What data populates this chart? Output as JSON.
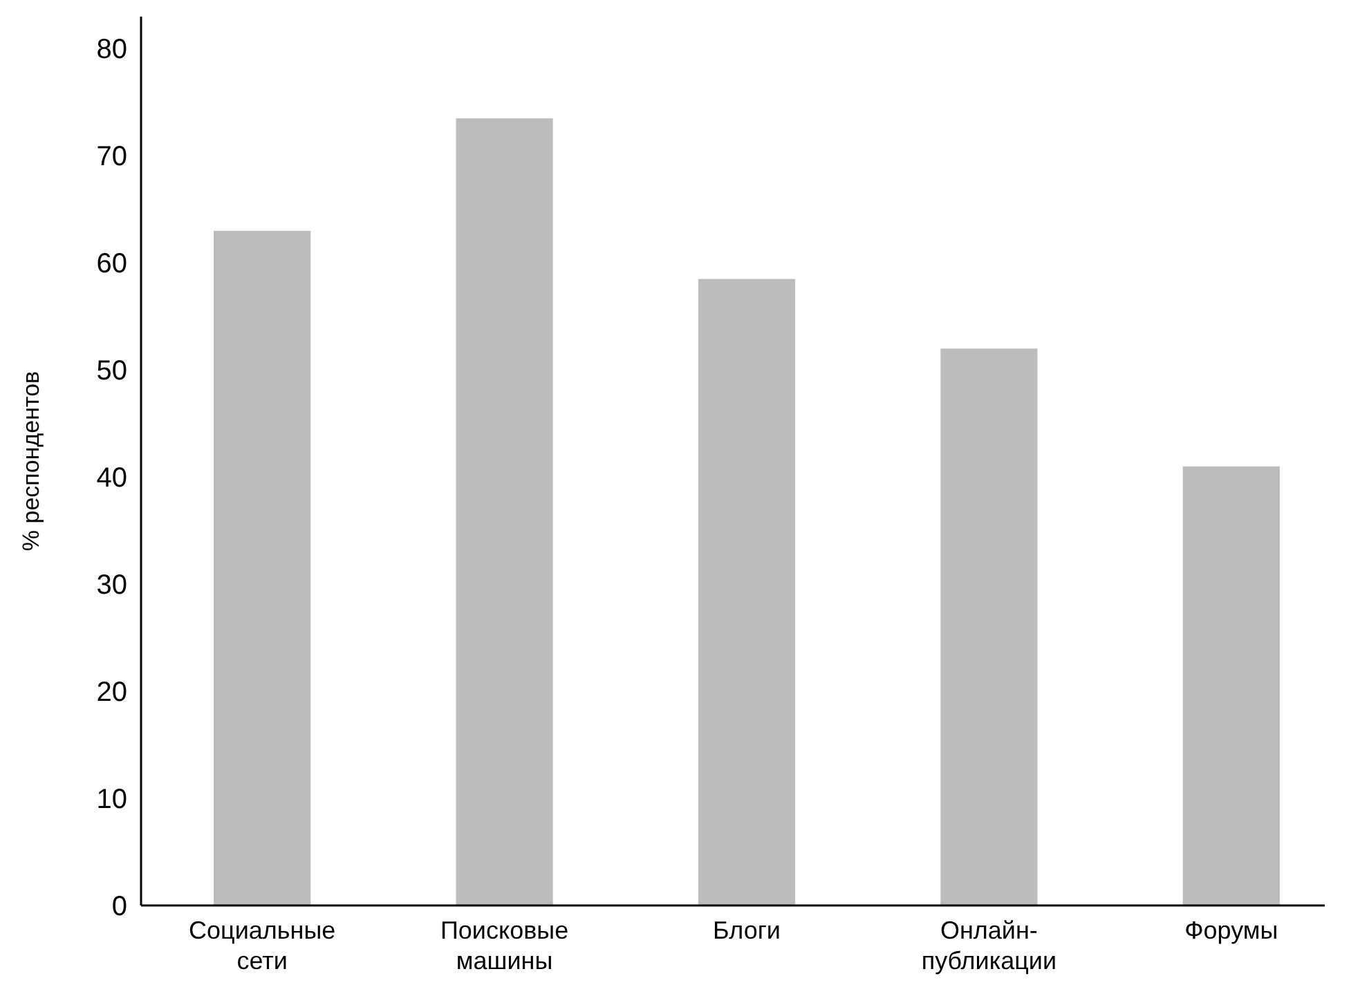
{
  "chart_data": {
    "type": "bar",
    "ylabel": "% респондентов",
    "categories": [
      "Социальные сети",
      "Поисковые машины",
      "Блоги",
      "Онлайн-публикации",
      "Форумы"
    ],
    "values": [
      63,
      73.5,
      58.5,
      52,
      41
    ],
    "color": "#bcbcbc",
    "ylim": [
      0,
      83
    ],
    "yticks": [
      0,
      10,
      20,
      30,
      40,
      50,
      60,
      70,
      80
    ],
    "grid": false
  }
}
